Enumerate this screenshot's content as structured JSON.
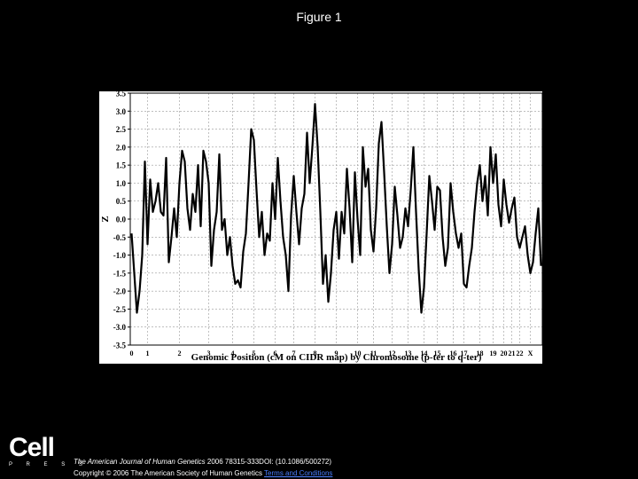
{
  "page": {
    "title": "Figure 1",
    "logo": "Cell",
    "logo_sub": "P R E S S",
    "journal": "The American Journal of Human Genetics",
    "citation": "2006 78315-333DOI: (10.1086/500272)",
    "copyright": "Copyright © 2006 The American Society of Human Genetics",
    "link": "Terms and Conditions"
  },
  "chart_data": {
    "type": "line",
    "ylabel": "Z",
    "xlabel": "Genomic Position (cM on CIDR map) by Chromosome (p-ter to q-ter)",
    "color": "#000000",
    "grid": true,
    "ylim": [
      -3.5,
      3.5
    ],
    "yticks": [
      -3.5,
      {
        "value": -3,
        "label": "-3.0"
      },
      -2.5,
      {
        "value": -2,
        "label": "-2.0"
      },
      -1.5,
      {
        "value": -1,
        "label": "-1.0"
      },
      -0.5,
      {
        "value": 0,
        "label": "0.0"
      },
      0.5,
      {
        "value": 1,
        "label": "1.0"
      },
      1.5,
      {
        "value": 2,
        "label": "2.0"
      },
      2.5,
      {
        "value": 3,
        "label": "3.0"
      },
      3.5
    ],
    "categories": [
      "0",
      null,
      null,
      null,
      null,
      null,
      "1",
      null,
      null,
      null,
      null,
      null,
      null,
      null,
      null,
      null,
      null,
      null,
      "2",
      null,
      null,
      null,
      null,
      null,
      null,
      null,
      null,
      null,
      null,
      "3",
      null,
      null,
      null,
      null,
      null,
      null,
      null,
      null,
      "4",
      null,
      null,
      null,
      null,
      null,
      null,
      null,
      "5",
      null,
      null,
      null,
      null,
      null,
      null,
      null,
      "6",
      null,
      null,
      null,
      null,
      null,
      null,
      "7",
      null,
      null,
      null,
      null,
      null,
      null,
      null,
      "8",
      null,
      null,
      null,
      null,
      null,
      null,
      null,
      "9",
      null,
      null,
      null,
      null,
      null,
      null,
      null,
      "10",
      null,
      null,
      null,
      null,
      null,
      "11",
      null,
      null,
      null,
      null,
      null,
      null,
      "12",
      null,
      null,
      null,
      null,
      null,
      "13",
      null,
      null,
      null,
      null,
      null,
      "14",
      null,
      null,
      null,
      null,
      "15",
      null,
      null,
      null,
      null,
      null,
      "16",
      null,
      null,
      null,
      "17",
      null,
      null,
      null,
      null,
      null,
      "18",
      null,
      null,
      null,
      null,
      "19",
      null,
      null,
      null,
      "20",
      null,
      null,
      "21",
      null,
      null,
      "22",
      null,
      null,
      null,
      "X",
      null,
      null,
      null,
      null
    ],
    "values": [
      -0.4,
      -1.5,
      -2.6,
      -2.0,
      -1.0,
      1.6,
      -0.7,
      1.1,
      0.2,
      0.5,
      1.0,
      0.2,
      0.1,
      1.7,
      -1.2,
      -0.5,
      0.3,
      -0.5,
      1.0,
      1.9,
      1.6,
      0.3,
      -0.3,
      0.7,
      0.2,
      1.5,
      -0.2,
      1.9,
      1.6,
      1.0,
      -1.3,
      -0.3,
      0.2,
      1.8,
      -0.3,
      0.0,
      -1.0,
      -0.5,
      -1.3,
      -1.8,
      -1.7,
      -1.9,
      -0.9,
      -0.4,
      1.0,
      2.5,
      2.2,
      0.8,
      -0.5,
      0.2,
      -1.0,
      -0.4,
      -0.6,
      1.0,
      0.0,
      1.7,
      0.5,
      -0.5,
      -1.0,
      -2.0,
      0.1,
      1.2,
      0.2,
      -0.7,
      0.3,
      0.7,
      2.4,
      1.0,
      2.0,
      3.2,
      2.0,
      0.2,
      -1.8,
      -1.0,
      -2.3,
      -1.5,
      -0.3,
      0.2,
      -1.1,
      0.2,
      -0.4,
      1.4,
      0.3,
      -1.2,
      1.3,
      0.0,
      -1.0,
      2.0,
      0.9,
      1.4,
      -0.3,
      -0.9,
      0.3,
      2.1,
      2.7,
      1.3,
      -0.2,
      -1.5,
      -0.7,
      0.9,
      0.1,
      -0.8,
      -0.5,
      0.3,
      -0.2,
      0.8,
      2.0,
      0.2,
      -1.4,
      -2.6,
      -1.9,
      -0.4,
      1.2,
      0.5,
      -0.3,
      0.9,
      0.8,
      -0.5,
      -1.3,
      -0.8,
      1.0,
      0.2,
      -0.4,
      -0.8,
      -0.4,
      -1.8,
      -1.9,
      -1.3,
      -0.8,
      0.2,
      1.0,
      1.5,
      0.5,
      1.2,
      0.1,
      2.0,
      1.0,
      1.8,
      0.4,
      -0.2,
      1.1,
      0.4,
      -0.1,
      0.3,
      0.6,
      -0.5,
      -0.8,
      -0.5,
      -0.2,
      -1.0,
      -1.5,
      -1.2,
      -0.4,
      0.3,
      -1.3
    ]
  }
}
